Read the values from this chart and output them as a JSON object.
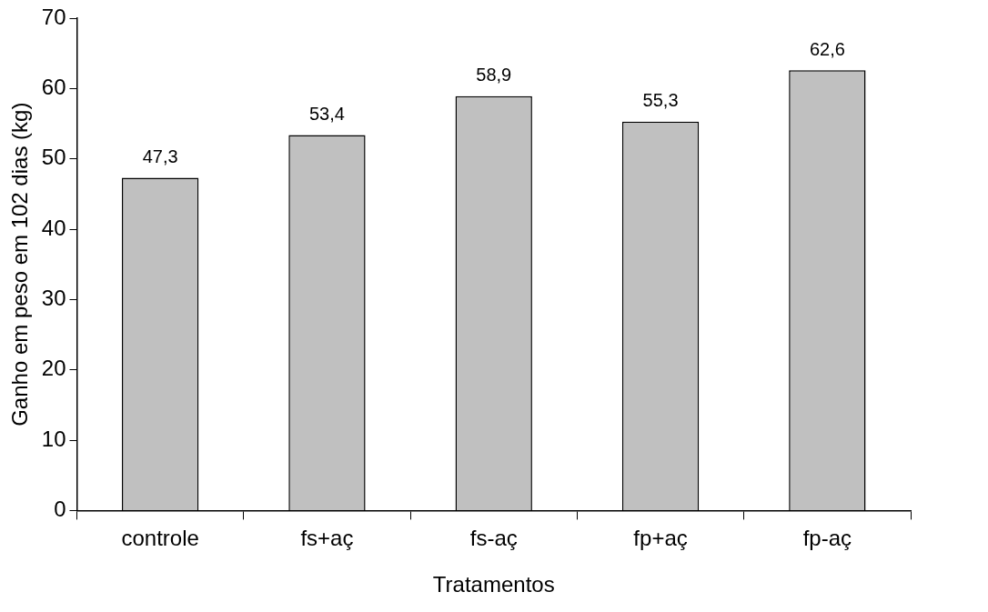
{
  "chart_data": {
    "type": "bar",
    "xlabel": "Tratamentos",
    "ylabel": "Ganho em peso em 102 dias (kg)",
    "categories": [
      "controle",
      "fs+aç",
      "fs-aç",
      "fp+aç",
      "fp-aç"
    ],
    "values": [
      47.3,
      53.4,
      58.9,
      55.3,
      62.6
    ],
    "value_labels": [
      "47,3",
      "53,4",
      "58,9",
      "55,3",
      "62,6"
    ],
    "color": "#c0c0c0",
    "ylim": [
      0,
      70
    ],
    "yticks": [
      0,
      10,
      20,
      30,
      40,
      50,
      60,
      70
    ],
    "grid": false,
    "legend": false
  }
}
